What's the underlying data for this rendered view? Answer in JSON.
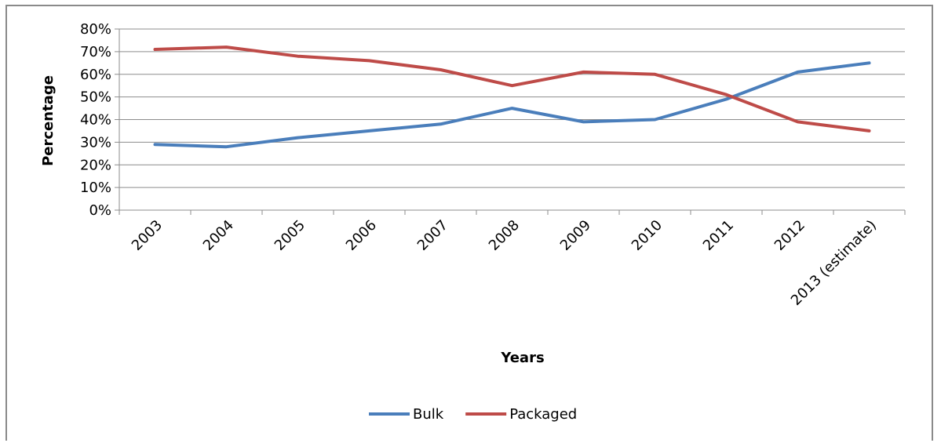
{
  "chart_data": {
    "type": "line",
    "categories": [
      "2003",
      "2004",
      "2005",
      "2006",
      "2007",
      "2008",
      "2009",
      "2010",
      "2011",
      "2012",
      "2013 (estimate)"
    ],
    "series": [
      {
        "name": "Bulk",
        "color": "#4a7ebb",
        "values": [
          29,
          28,
          32,
          35,
          38,
          45,
          39,
          40,
          49,
          61,
          65
        ]
      },
      {
        "name": "Packaged",
        "color": "#be4b48",
        "values": [
          71,
          72,
          68,
          66,
          62,
          55,
          61,
          60,
          51,
          39,
          35
        ]
      }
    ],
    "xlabel": "Years",
    "ylabel": "Percentage",
    "ylim": [
      0,
      80
    ],
    "yticks": [
      "0%",
      "10%",
      "20%",
      "30%",
      "40%",
      "50%",
      "60%",
      "70%",
      "80%"
    ],
    "grid": true,
    "legend_position": "bottom"
  }
}
